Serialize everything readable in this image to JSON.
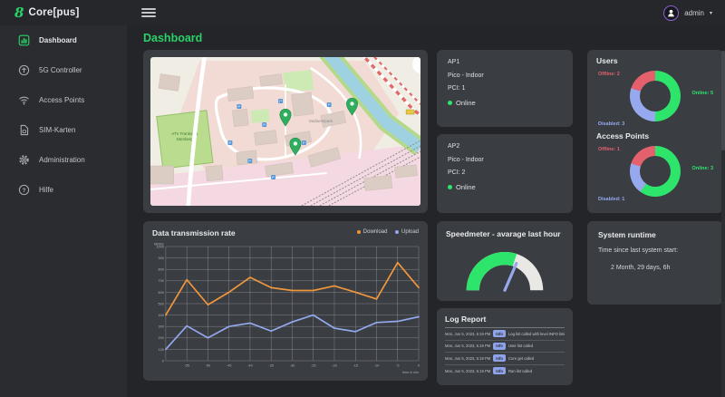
{
  "topbar": {
    "logo_glyph": "8",
    "logo_text": "Core[pus]",
    "user_label": "admin",
    "caret": "▾"
  },
  "sidebar": {
    "items": [
      {
        "label": "Dashboard",
        "icon": "dashboard-icon",
        "active": true
      },
      {
        "label": "5G Controller",
        "icon": "5g-controller-icon",
        "active": false
      },
      {
        "label": "Access Points",
        "icon": "wifi-icon",
        "active": false
      },
      {
        "label": "SIM-Karten",
        "icon": "sim-card-icon",
        "active": false
      },
      {
        "label": "Administration",
        "icon": "gear-icon",
        "active": false
      },
      {
        "label": "Hilfe",
        "icon": "help-icon",
        "active": false
      }
    ]
  },
  "main": {
    "title": "Dashboard"
  },
  "map": {
    "label_park_line1": "ATV Frankonia",
    "label_park_line2": "Nürnberg",
    "label_area": "Südwestpark",
    "pin_count": 3,
    "pin_color": "#2fae5e"
  },
  "ap1": {
    "name": "AP1",
    "type": "Pico - Indoor",
    "pci": "PCI: 1",
    "status": "Online"
  },
  "ap2": {
    "name": "AP2",
    "type": "Pico - Indoor",
    "pci": "PCI: 2",
    "status": "Online"
  },
  "runtime": {
    "title": "System runtime",
    "caption": "Time since last system start:",
    "value": "2 Month, 29 days, 6h"
  },
  "log": {
    "title": "Log Report",
    "rows": [
      {
        "time": "Mon, Jun 5, 2023, 5:19 PM",
        "level": "Info",
        "message": "Log list called with level INFO limit 100"
      },
      {
        "time": "Mon, Jun 5, 2023, 5:19 PM",
        "level": "Info",
        "message": "User list called"
      },
      {
        "time": "Mon, Jun 5, 2023, 5:19 PM",
        "level": "Info",
        "message": "Core get called"
      },
      {
        "time": "Mon, Jun 5, 2023, 5:19 PM",
        "level": "Info",
        "message": "Ran list called"
      }
    ]
  },
  "colors": {
    "accent_green": "#2bd168",
    "status_green": "#2ee56b",
    "donut_green": "#2ee56b",
    "donut_red": "#e4606d",
    "donut_blue": "#96a9ee",
    "download_orange": "#f0973c",
    "upload_blue": "#93a9ec",
    "panel_bg": "#3a3d42",
    "avatar_ring": "#8a5fd6",
    "badge_blue": "#8fa3ea"
  },
  "chart_data": [
    {
      "id": "transmission",
      "type": "line",
      "title": "Data transmission rate",
      "ylabel": "MBit/s",
      "xlabel": "time in min",
      "x": [
        -60,
        -55,
        -50,
        -45,
        -40,
        -35,
        -30,
        -25,
        -20,
        -15,
        -10,
        -5,
        0
      ],
      "series": [
        {
          "name": "Download",
          "color": "#f0973c",
          "values": [
            400,
            710,
            490,
            600,
            730,
            640,
            615,
            615,
            655,
            600,
            540,
            860,
            640
          ]
        },
        {
          "name": "Upload",
          "color": "#93a9ec",
          "values": [
            100,
            305,
            200,
            300,
            330,
            260,
            340,
            400,
            285,
            255,
            335,
            345,
            385
          ]
        }
      ],
      "ylim": [
        0,
        1000
      ],
      "ytick_step": 100,
      "grid": true,
      "legend_position": "top-right"
    },
    {
      "id": "users",
      "type": "donut",
      "title": "Users",
      "segments": [
        {
          "label": "Online",
          "value": 5,
          "color": "#2ee56b",
          "display": "Online: 5"
        },
        {
          "label": "Disabled",
          "value": 3,
          "color": "#96a9ee",
          "display": "Disabled: 3"
        },
        {
          "label": "Offline",
          "value": 2,
          "color": "#e4606d",
          "display": "Offline: 2"
        }
      ]
    },
    {
      "id": "access_points",
      "type": "donut",
      "title": "Access Points",
      "segments": [
        {
          "label": "Online",
          "value": 3,
          "color": "#2ee56b",
          "display": "Online: 3"
        },
        {
          "label": "Disabled",
          "value": 1,
          "color": "#96a9ee",
          "display": "Disabled: 1"
        },
        {
          "label": "Offline",
          "value": 1,
          "color": "#e4606d",
          "display": "Offline: 1"
        }
      ]
    },
    {
      "id": "speedmeter",
      "type": "gauge",
      "title": "Speedmeter - avarage last hour",
      "percent": 60,
      "needle_percent": 63,
      "fill_color": "#2ee56b",
      "track_color": "#e9e8e4",
      "needle_color": "#98a8ee"
    }
  ]
}
